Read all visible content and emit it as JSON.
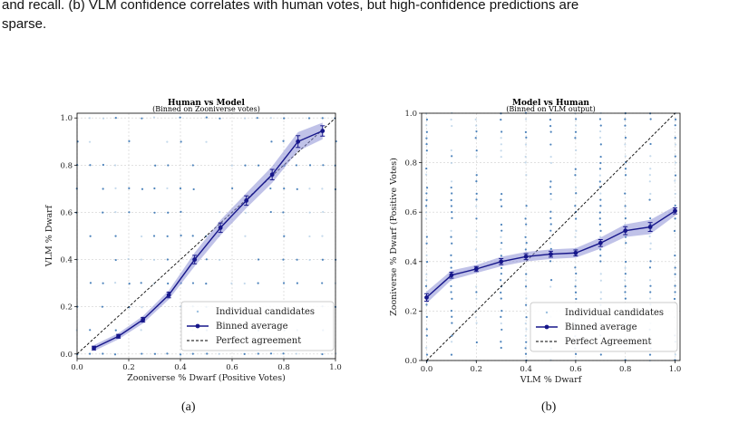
{
  "caption": {
    "line1": "and recall. (b) VLM confidence correlates with human votes, but high-confidence predictions are",
    "line2": "sparse."
  },
  "figures": [
    {
      "sublabel": "(a)"
    },
    {
      "sublabel": "(b)"
    }
  ],
  "colors": {
    "binned": "#16168a",
    "band": "#8c8fd6",
    "scatter_dark": "#2f6fb0",
    "scatter_light": "#9fc1e0"
  },
  "chart_data": [
    {
      "type": "line",
      "title": "Human vs Model",
      "subtitle": "(Binned on Zooniverse votes)",
      "xlabel": "Zooniverse % Dwarf (Positive Votes)",
      "ylabel": "VLM % Dwarf",
      "xlim": [
        0,
        1.0
      ],
      "ylim": [
        -0.02,
        1.02
      ],
      "xticks": [
        "0.0",
        "0.2",
        "0.4",
        "0.6",
        "0.8",
        "1.0"
      ],
      "yticks": [
        "0.0",
        "0.2",
        "0.4",
        "0.6",
        "0.8",
        "1.0"
      ],
      "grid": true,
      "legend_position": "lower-right",
      "legend": [
        "Individual candidates",
        "Binned average",
        "Perfect agreement"
      ],
      "scatter_x": [
        0.0,
        0.05,
        0.1,
        0.15,
        0.2,
        0.25,
        0.3,
        0.35,
        0.4,
        0.45,
        0.5,
        0.55,
        0.6,
        0.65,
        0.7,
        0.75,
        0.8,
        0.85,
        0.9,
        0.95,
        1.0
      ],
      "scatter_y": [
        0.0,
        0.1,
        0.2,
        0.3,
        0.4,
        0.5,
        0.6,
        0.7,
        0.8,
        0.9,
        1.0
      ],
      "series": [
        {
          "name": "Binned average",
          "x": [
            0.065,
            0.16,
            0.255,
            0.355,
            0.455,
            0.555,
            0.655,
            0.755,
            0.855,
            0.95
          ],
          "y": [
            0.025,
            0.075,
            0.145,
            0.25,
            0.4,
            0.535,
            0.65,
            0.76,
            0.9,
            0.945
          ],
          "err": [
            0.008,
            0.008,
            0.01,
            0.012,
            0.018,
            0.02,
            0.02,
            0.022,
            0.025,
            0.022
          ]
        },
        {
          "name": "Perfect agreement",
          "x": [
            0,
            1
          ],
          "y": [
            0,
            1
          ]
        }
      ]
    },
    {
      "type": "line",
      "title": "Model vs Human",
      "subtitle": "(Binned on VLM output)",
      "xlabel": "VLM % Dwarf",
      "ylabel": "Zooniverse % Dwarf (Positive Votes)",
      "xlim": [
        -0.02,
        1.02
      ],
      "ylim": [
        0,
        1.0
      ],
      "xticks": [
        "0.0",
        "0.2",
        "0.4",
        "0.6",
        "0.8",
        "1.0"
      ],
      "yticks": [
        "0.0",
        "0.2",
        "0.4",
        "0.6",
        "0.8",
        "1.0"
      ],
      "grid": true,
      "legend_position": "lower-right",
      "legend": [
        "Individual candidates",
        "Binned average",
        "Perfect Agreement"
      ],
      "scatter_x": [
        0.0,
        0.1,
        0.2,
        0.3,
        0.4,
        0.5,
        0.6,
        0.7,
        0.8,
        0.9,
        1.0
      ],
      "scatter_y_step": 0.025,
      "series": [
        {
          "name": "Binned average",
          "x": [
            0.0,
            0.1,
            0.2,
            0.3,
            0.4,
            0.5,
            0.6,
            0.7,
            0.8,
            0.9,
            1.0
          ],
          "y": [
            0.255,
            0.345,
            0.37,
            0.4,
            0.42,
            0.43,
            0.435,
            0.475,
            0.525,
            0.54,
            0.605
          ],
          "err": [
            0.015,
            0.012,
            0.01,
            0.012,
            0.012,
            0.012,
            0.012,
            0.014,
            0.016,
            0.018,
            0.012
          ]
        },
        {
          "name": "Perfect Agreement",
          "x": [
            0,
            1
          ],
          "y": [
            0,
            1
          ]
        }
      ]
    }
  ]
}
